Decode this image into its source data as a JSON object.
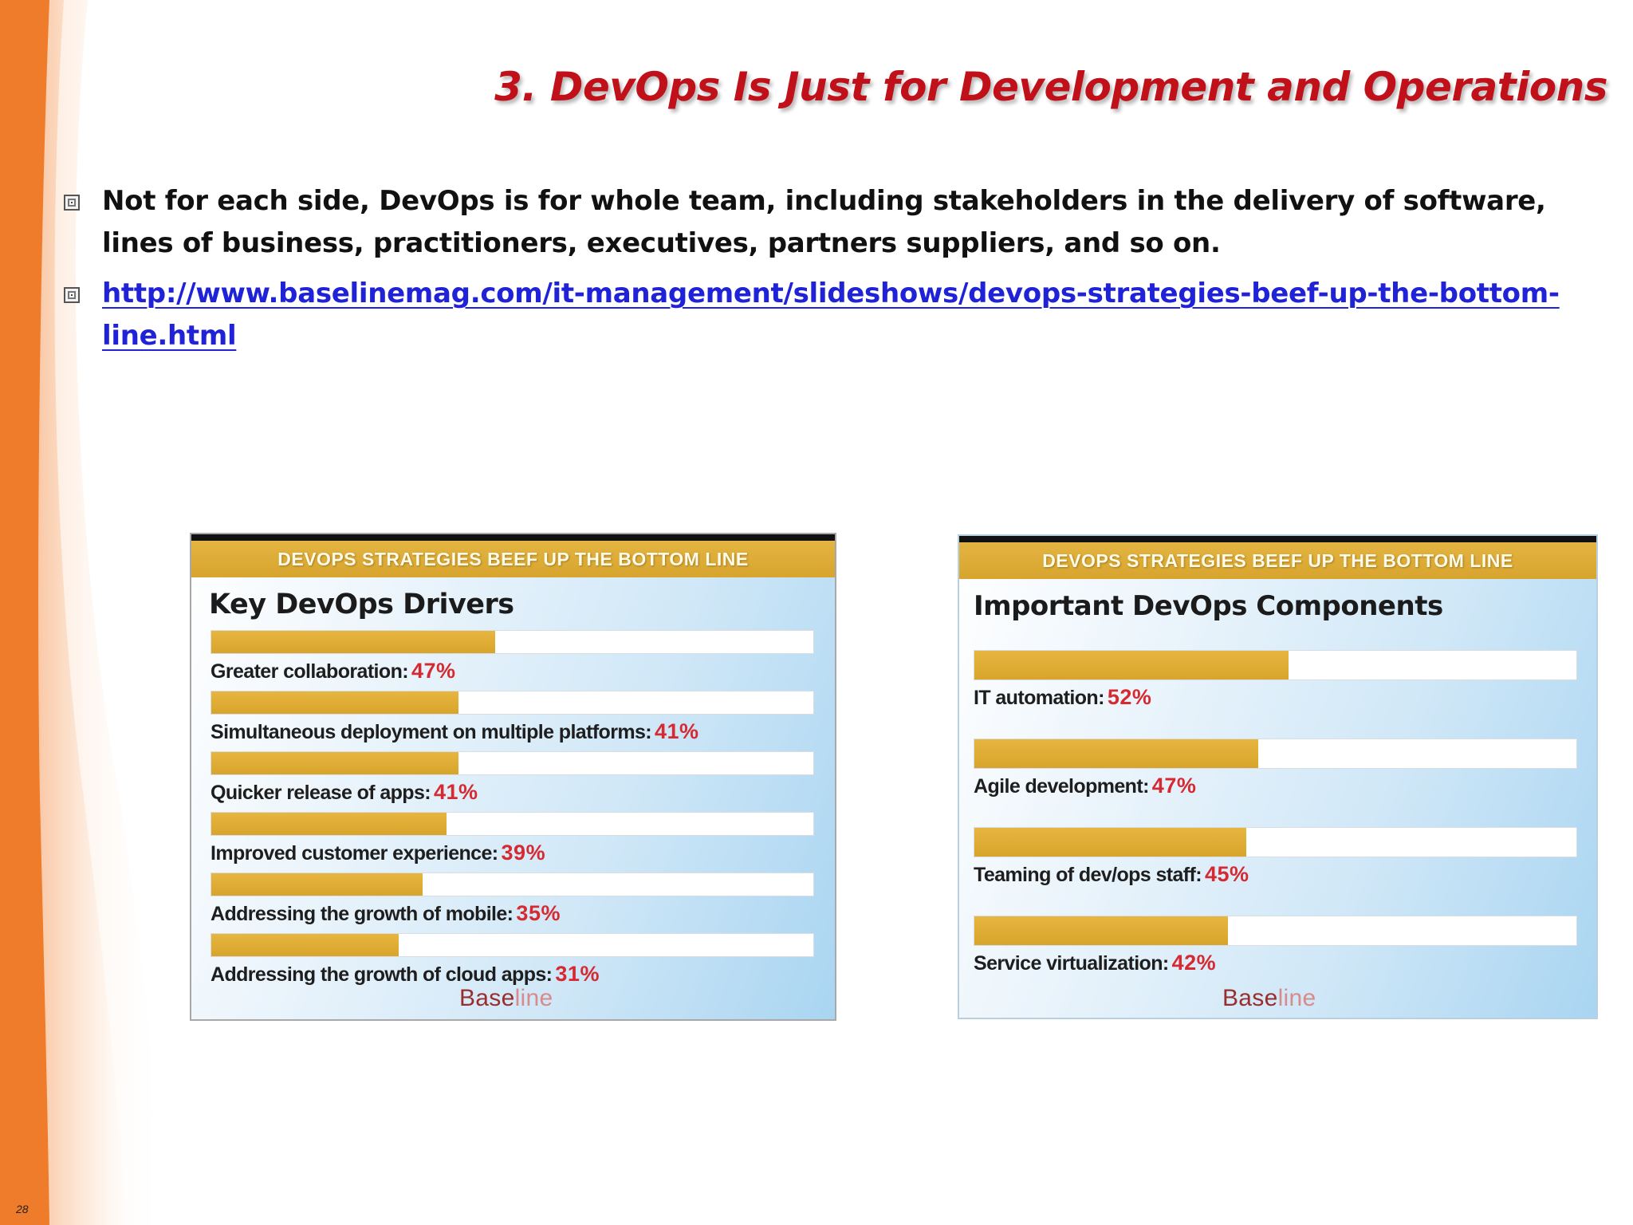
{
  "slide": {
    "title": "3. DevOps Is Just for Development and Operations",
    "page_number": "28",
    "accent_color": "#c0111a",
    "ribbon_color": "#ef7c2a"
  },
  "bullets": [
    {
      "text": "Not for each side, DevOps is for whole team, including stakeholders in the delivery of software, lines of business, practitioners, executives, partners suppliers, and so on.",
      "icon": "square-bullet-icon"
    },
    {
      "text": "http://www.baselinemag.com/it-management/slideshows/devops-strategies-beef-up-the-bottom-line.html",
      "icon": "square-bullet-icon"
    }
  ],
  "chart_data": [
    {
      "type": "bar",
      "banner": "DEVOPS STRATEGIES BEEF UP THE BOTTOM LINE",
      "title": "Key DevOps Drivers",
      "categories": [
        "Greater collaboration:",
        "Simultaneous deployment on multiple platforms:",
        "Quicker release of apps:",
        "Improved customer experience:",
        "Addressing the growth of mobile:",
        "Addressing the growth of cloud apps:"
      ],
      "values": [
        47,
        41,
        41,
        39,
        35,
        31
      ],
      "value_labels": [
        "47%",
        "41%",
        "41%",
        "39%",
        "35%",
        "31%"
      ],
      "xlim": [
        0,
        100
      ],
      "brand_main": "Base",
      "brand_accent": "line",
      "bar_color": "#e0ad36"
    },
    {
      "type": "bar",
      "banner": "DEVOPS STRATEGIES BEEF UP THE BOTTOM LINE",
      "title": "Important DevOps Components",
      "categories": [
        "IT automation:",
        "Agile development:",
        "Teaming of dev/ops staff:",
        "Service virtualization:"
      ],
      "values": [
        52,
        47,
        45,
        42
      ],
      "value_labels": [
        "52%",
        "47%",
        "45%",
        "42%"
      ],
      "xlim": [
        0,
        100
      ],
      "brand_main": "Base",
      "brand_accent": "line",
      "bar_color": "#e0ad36"
    }
  ]
}
